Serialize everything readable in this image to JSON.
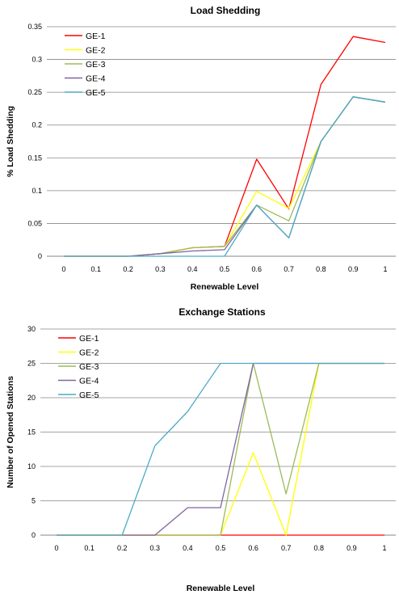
{
  "chart_data": [
    {
      "type": "line",
      "title": "Load Shedding",
      "xlabel": "Renewable Level",
      "ylabel": "% Load Shedding",
      "x": [
        0,
        0.1,
        0.2,
        0.3,
        0.4,
        0.5,
        0.6,
        0.7,
        0.8,
        0.9,
        1
      ],
      "x_tick_labels": [
        "0",
        "0.1",
        "0.2",
        "0.3",
        "0.4",
        "0.5",
        "0.6",
        "0.7",
        "0.8",
        "0.9",
        "1"
      ],
      "y_tick_labels": [
        "0",
        "0.05",
        "0.1",
        "0.15",
        "0.2",
        "0.25",
        "0.3",
        "0.35"
      ],
      "ylim": [
        0,
        0.35
      ],
      "grid": true,
      "legend_position": "top-left",
      "series": [
        {
          "name": "GE-1",
          "color": "#ff0000",
          "values": [
            0,
            0,
            0,
            0.004,
            0.013,
            0.015,
            0.148,
            0.072,
            0.262,
            0.335,
            0.326
          ]
        },
        {
          "name": "GE-2",
          "color": "#ffff00",
          "values": [
            0,
            0,
            0,
            0.004,
            0.013,
            0.015,
            0.099,
            0.073,
            0.175,
            0.243,
            0.235
          ]
        },
        {
          "name": "GE-3",
          "color": "#9bbb59",
          "values": [
            0,
            0,
            0,
            0.004,
            0.013,
            0.015,
            0.078,
            0.054,
            0.175,
            0.243,
            0.235
          ]
        },
        {
          "name": "GE-4",
          "color": "#8064a2",
          "values": [
            0,
            0,
            0,
            0.004,
            0.008,
            0.01,
            0.078,
            0.028,
            0.175,
            0.243,
            0.235
          ]
        },
        {
          "name": "GE-5",
          "color": "#4bacc6",
          "values": [
            0,
            0,
            0,
            0,
            0,
            0,
            0.078,
            0.028,
            0.175,
            0.243,
            0.235
          ]
        }
      ]
    },
    {
      "type": "line",
      "title": "Exchange Stations",
      "xlabel": "Renewable Level",
      "ylabel": "Number of Opened Stations",
      "x": [
        0,
        0.1,
        0.2,
        0.3,
        0.4,
        0.5,
        0.6,
        0.7,
        0.8,
        0.9,
        1
      ],
      "x_tick_labels": [
        "0",
        "0.1",
        "0.2",
        "0.3",
        "0.4",
        "0.5",
        "0.6",
        "0.7",
        "0.8",
        "0.9",
        "1"
      ],
      "y_tick_labels": [
        "0",
        "5",
        "10",
        "15",
        "20",
        "25",
        "30"
      ],
      "ylim": [
        0,
        30
      ],
      "grid": true,
      "legend_position": "top-left",
      "series": [
        {
          "name": "GE-1",
          "color": "#ff0000",
          "values": [
            0,
            0,
            0,
            0,
            0,
            0,
            0,
            0,
            0,
            0,
            0
          ]
        },
        {
          "name": "GE-2",
          "color": "#ffff00",
          "values": [
            0,
            0,
            0,
            0,
            0,
            0,
            12,
            0,
            25,
            25,
            25
          ]
        },
        {
          "name": "GE-3",
          "color": "#9bbb59",
          "values": [
            0,
            0,
            0,
            0,
            0,
            0,
            25,
            6,
            25,
            25,
            25
          ]
        },
        {
          "name": "GE-4",
          "color": "#8064a2",
          "values": [
            0,
            0,
            0,
            0,
            4,
            4,
            25,
            25,
            25,
            25,
            25
          ]
        },
        {
          "name": "GE-5",
          "color": "#4bacc6",
          "values": [
            0,
            0,
            0,
            13,
            18,
            25,
            25,
            25,
            25,
            25,
            25
          ]
        }
      ]
    }
  ]
}
